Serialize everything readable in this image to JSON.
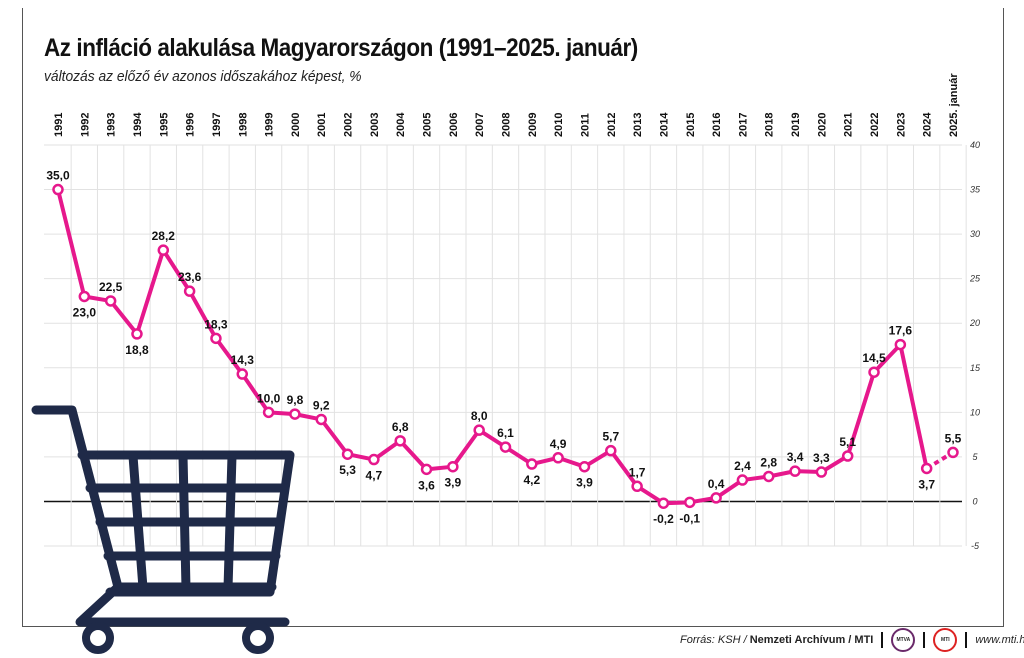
{
  "header": {
    "title": "Az infláció alakulása Magyarországon (1991–2025. január)",
    "subtitle": "változás az előző év azonos időszakához képest, %"
  },
  "footer": {
    "source_prefix": "Forrás: KSH / ",
    "source_bold": "Nemzeti Archívum / MTI",
    "logo1": "MTVA",
    "logo2": "MTI",
    "url": "www.mti.hu"
  },
  "colors": {
    "line": "#e6188c",
    "cart": "#1f2a48",
    "grid": "#e2e2e2"
  },
  "chart_data": {
    "type": "line",
    "title": "Az infláció alakulása Magyarországon (1991–2025. január)",
    "ylabel": "változás az előző év azonos időszakához képest, %",
    "categories": [
      "1991",
      "1992",
      "1993",
      "1994",
      "1995",
      "1996",
      "1997",
      "1998",
      "1999",
      "2000",
      "2001",
      "2002",
      "2003",
      "2004",
      "2005",
      "2006",
      "2007",
      "2008",
      "2009",
      "2010",
      "2011",
      "2012",
      "2013",
      "2014",
      "2015",
      "2016",
      "2017",
      "2018",
      "2019",
      "2020",
      "2021",
      "2022",
      "2023",
      "2024",
      "2025. január"
    ],
    "values": [
      35.0,
      23.0,
      22.5,
      18.8,
      28.2,
      23.6,
      18.3,
      14.3,
      10.0,
      9.8,
      9.2,
      5.3,
      4.7,
      6.8,
      3.6,
      3.9,
      8.0,
      6.1,
      4.2,
      4.9,
      3.9,
      5.7,
      1.7,
      -0.2,
      -0.1,
      0.4,
      2.4,
      2.8,
      3.4,
      3.3,
      5.1,
      14.5,
      17.6,
      3.7,
      5.5
    ],
    "labels": [
      "35,0",
      "23,0",
      "22,5",
      "18,8",
      "28,2",
      "23,6",
      "18,3",
      "14,3",
      "10,0",
      "9,8",
      "9,2",
      "5,3",
      "4,7",
      "6,8",
      "3,6",
      "3,9",
      "8,0",
      "6,1",
      "4,2",
      "4,9",
      "3,9",
      "5,7",
      "1,7",
      "-0,2",
      "-0,1",
      "0,4",
      "2,4",
      "2,8",
      "3,4",
      "3,3",
      "5,1",
      "14,5",
      "17,6",
      "3,7",
      "5,5"
    ],
    "label_pos": [
      "a",
      "b",
      "a",
      "b",
      "a",
      "a",
      "a",
      "a",
      "a",
      "a",
      "a",
      "b",
      "b",
      "a",
      "b",
      "b",
      "a",
      "a",
      "b",
      "a",
      "b",
      "a",
      "a",
      "b",
      "b",
      "a",
      "a",
      "a",
      "a",
      "a",
      "a",
      "a",
      "a",
      "b",
      "a"
    ],
    "yticks": [
      "40",
      "35",
      "30",
      "25",
      "20",
      "15",
      "10",
      "5",
      "0",
      "-5"
    ],
    "ylim": [
      -5,
      40
    ],
    "grid": true,
    "dashed_last_segment": true
  }
}
